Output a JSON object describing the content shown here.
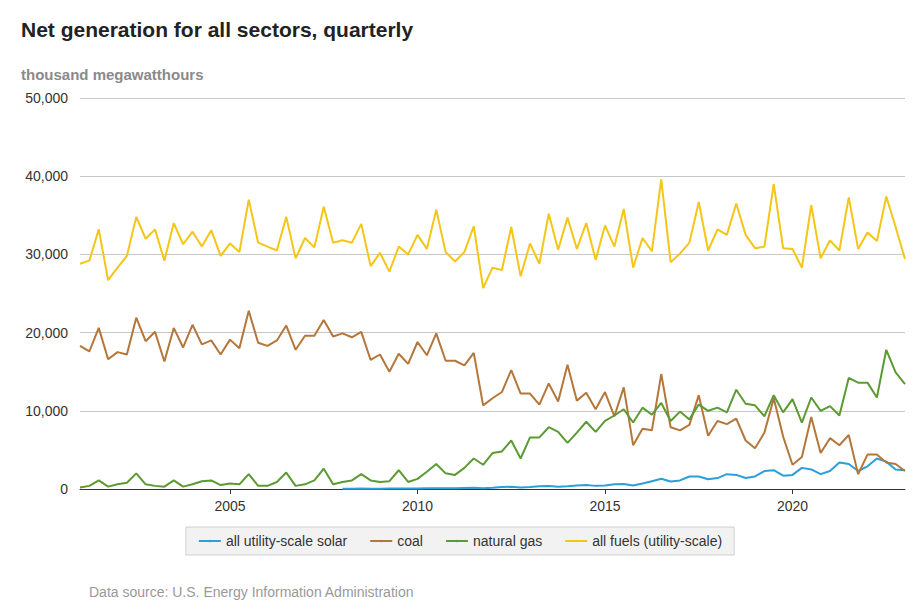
{
  "chart_data": {
    "type": "line",
    "title": "Net generation for all sectors, quarterly",
    "subtitle": "thousand megawatthours",
    "source": "Data source: U.S. Energy Information Administration",
    "x": [
      2001,
      2001.25,
      2001.5,
      2001.75,
      2002,
      2002.25,
      2002.5,
      2002.75,
      2003,
      2003.25,
      2003.5,
      2003.75,
      2004,
      2004.25,
      2004.5,
      2004.75,
      2005,
      2005.25,
      2005.5,
      2005.75,
      2006,
      2006.25,
      2006.5,
      2006.75,
      2007,
      2007.25,
      2007.5,
      2007.75,
      2008,
      2008.25,
      2008.5,
      2008.75,
      2009,
      2009.25,
      2009.5,
      2009.75,
      2010,
      2010.25,
      2010.5,
      2010.75,
      2011,
      2011.25,
      2011.5,
      2011.75,
      2012,
      2012.25,
      2012.5,
      2012.75,
      2013,
      2013.25,
      2013.5,
      2013.75,
      2014,
      2014.25,
      2014.5,
      2014.75,
      2015,
      2015.25,
      2015.5,
      2015.75,
      2016,
      2016.25,
      2016.5,
      2016.75,
      2017,
      2017.25,
      2017.5,
      2017.75,
      2018,
      2018.25,
      2018.5,
      2018.75,
      2019,
      2019.25,
      2019.5,
      2019.75,
      2020,
      2020.25,
      2020.5,
      2020.75,
      2021,
      2021.25,
      2021.5,
      2021.75,
      2022,
      2022.25,
      2022.5,
      2022.75,
      2023
    ],
    "series": [
      {
        "name": "all utility-scale solar",
        "color": "#2b9fd8",
        "values": [
          null,
          null,
          null,
          null,
          null,
          null,
          null,
          null,
          null,
          null,
          null,
          null,
          null,
          null,
          null,
          null,
          null,
          null,
          null,
          null,
          null,
          null,
          null,
          null,
          null,
          null,
          null,
          null,
          30,
          40,
          50,
          30,
          40,
          60,
          60,
          50,
          70,
          100,
          110,
          80,
          90,
          140,
          160,
          100,
          150,
          250,
          280,
          180,
          250,
          350,
          380,
          300,
          350,
          450,
          500,
          400,
          450,
          600,
          650,
          450,
          700,
          1000,
          1300,
          950,
          1100,
          1600,
          1600,
          1250,
          1400,
          1900,
          1800,
          1400,
          1600,
          2300,
          2400,
          1700,
          1800,
          2700,
          2500,
          1900,
          2300,
          3400,
          3200,
          2300,
          2900,
          3900,
          3500,
          2500,
          2400
        ]
      },
      {
        "name": "coal",
        "color": "#b5763a",
        "values": [
          18300,
          17600,
          20600,
          16600,
          17500,
          17200,
          21900,
          18900,
          20100,
          16300,
          20600,
          18100,
          21000,
          18500,
          19000,
          17200,
          19100,
          18000,
          22800,
          18700,
          18300,
          19000,
          20900,
          17800,
          19600,
          19600,
          21600,
          19500,
          19900,
          19400,
          20100,
          16500,
          17200,
          15000,
          17300,
          16000,
          18800,
          17100,
          19900,
          16400,
          16400,
          15800,
          17400,
          10700,
          11600,
          12400,
          15200,
          12200,
          12200,
          10800,
          13500,
          11200,
          15900,
          11300,
          12300,
          10200,
          12400,
          9300,
          13000,
          5600,
          7700,
          7500,
          14700,
          7900,
          7500,
          8200,
          12000,
          6800,
          8700,
          8300,
          9000,
          6200,
          5200,
          7200,
          11600,
          6700,
          3100,
          4100,
          9200,
          4600,
          6500,
          5600,
          6900,
          1900,
          4400,
          4400,
          3400,
          3200,
          2300
        ]
      },
      {
        "name": "natural gas",
        "color": "#5c9a33",
        "values": [
          200,
          400,
          1100,
          300,
          600,
          800,
          2000,
          600,
          400,
          300,
          1100,
          300,
          600,
          1000,
          1100,
          500,
          700,
          600,
          1900,
          400,
          400,
          900,
          2100,
          400,
          600,
          1100,
          2600,
          600,
          900,
          1100,
          1900,
          1100,
          900,
          1000,
          2400,
          900,
          1300,
          2200,
          3200,
          2000,
          1800,
          2700,
          3900,
          3100,
          4600,
          4800,
          6200,
          3900,
          6600,
          6600,
          7900,
          7300,
          5900,
          7200,
          8600,
          7300,
          8700,
          9400,
          10200,
          8500,
          10400,
          9500,
          11000,
          8700,
          9900,
          8900,
          10800,
          10000,
          10400,
          9800,
          12700,
          10900,
          10700,
          9300,
          12000,
          9800,
          11500,
          8500,
          11700,
          10000,
          10600,
          9400,
          14200,
          13600,
          13600,
          11700,
          17800,
          14900,
          13400
        ]
      },
      {
        "name": "all fuels (utility-scale)",
        "color": "#f5c518",
        "values": [
          28800,
          29200,
          33200,
          26700,
          28300,
          29800,
          34800,
          32000,
          33200,
          29200,
          34000,
          31300,
          32900,
          31000,
          33100,
          29800,
          31400,
          30300,
          37000,
          31500,
          31000,
          30500,
          34800,
          29500,
          32100,
          30900,
          36100,
          31500,
          31800,
          31500,
          33900,
          28500,
          30200,
          27800,
          31000,
          30000,
          32500,
          30700,
          35700,
          30300,
          29100,
          30300,
          33600,
          25700,
          28300,
          28000,
          33500,
          27200,
          31400,
          28800,
          35200,
          30600,
          34700,
          30700,
          34000,
          29300,
          33700,
          31000,
          35800,
          28300,
          32100,
          30400,
          39600,
          29000,
          30100,
          31500,
          36700,
          30500,
          33200,
          32500,
          36500,
          32500,
          30800,
          31000,
          39000,
          30800,
          30700,
          28300,
          36300,
          29500,
          31800,
          30500,
          37300,
          30700,
          32800,
          31700,
          37400,
          33500,
          29400
        ]
      }
    ],
    "xlim": [
      2001,
      2023
    ],
    "xticks": [
      2005,
      2010,
      2015,
      2020
    ],
    "ylim": [
      0,
      50000
    ],
    "yticks": [
      0,
      {
        "value": 10000,
        "label": "10,000"
      },
      {
        "value": 20000,
        "label": "20,000"
      },
      {
        "value": 30000,
        "label": "30,000"
      },
      {
        "value": 40000,
        "label": "40,000"
      },
      {
        "value": 50000,
        "label": "50,000"
      }
    ],
    "grid": true,
    "legend": "bottom"
  }
}
